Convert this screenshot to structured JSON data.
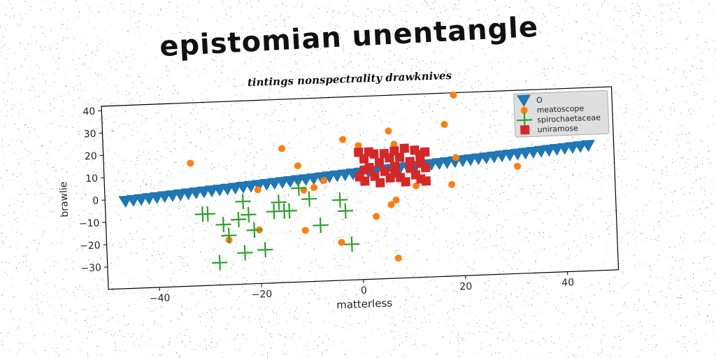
{
  "title": "epistomian unentangle",
  "subtitle": "tintings nonspectrality drawknives",
  "colors": {
    "series_1": "#1f77b4",
    "series_2": "#ff7f0e",
    "series_3": "#2ca02c",
    "series_4": "#d62728",
    "legend_bg": "#dcdcdc",
    "axis": "#000000"
  },
  "chart_data": {
    "type": "scatter",
    "title": "tintings nonspectrality drawknives",
    "xlabel": "matterless",
    "ylabel": "brawlie",
    "xlim": [
      -50,
      50
    ],
    "ylim": [
      -40,
      42
    ],
    "xticks": [
      -40,
      -20,
      0,
      20,
      40
    ],
    "yticks": [
      -30,
      -20,
      -10,
      0,
      10,
      20,
      30,
      40
    ],
    "xtick_labels": [
      "−40",
      "−20",
      "0",
      "20",
      "40"
    ],
    "ytick_labels": [
      "−30",
      "−20",
      "−10",
      "0",
      "10",
      "20",
      "30",
      "40"
    ],
    "grid": false,
    "legend_position": "top-right",
    "series": [
      {
        "name": "O",
        "marker": "triangle-down",
        "color": "#1f77b4",
        "line": {
          "x0": -46,
          "y0": -1,
          "x1": 45,
          "y1": 16
        },
        "count": 60
      },
      {
        "name": "meatoscope",
        "marker": "circle",
        "color": "#ff7f0e",
        "points": [
          [
            -33,
            15
          ],
          [
            -15,
            20
          ],
          [
            -12,
            12
          ],
          [
            -20,
            2
          ],
          [
            -11,
            1
          ],
          [
            -9,
            2
          ],
          [
            -7,
            5
          ],
          [
            -3,
            23
          ],
          [
            0,
            20
          ],
          [
            -26,
            -20
          ],
          [
            -20,
            -16
          ],
          [
            -11,
            -17
          ],
          [
            -4,
            -23
          ],
          [
            2,
            10
          ],
          [
            3,
            -12
          ],
          [
            6,
            -7
          ],
          [
            7,
            -5
          ],
          [
            6,
            26
          ],
          [
            7,
            20
          ],
          [
            11,
            1
          ],
          [
            17,
            28
          ],
          [
            18,
            1
          ],
          [
            19,
            13
          ],
          [
            19,
            41
          ],
          [
            31,
            8
          ],
          [
            7,
            -31
          ]
        ]
      },
      {
        "name": "spirochaetaceae",
        "marker": "plus",
        "color": "#2ca02c",
        "points": [
          [
            -31,
            -8
          ],
          [
            -30,
            -8
          ],
          [
            -27,
            -13
          ],
          [
            -26,
            -18
          ],
          [
            -24,
            -11
          ],
          [
            -23,
            -3
          ],
          [
            -22,
            -9
          ],
          [
            -21,
            -16
          ],
          [
            -19,
            -25
          ],
          [
            -17,
            -8
          ],
          [
            -16,
            -4
          ],
          [
            -14,
            -8
          ],
          [
            -12,
            2
          ],
          [
            -10,
            -3
          ],
          [
            -8,
            -15
          ],
          [
            -4,
            -4
          ],
          [
            -3,
            -9
          ],
          [
            -2,
            -24
          ],
          [
            -28,
            -30
          ],
          [
            -23,
            -26
          ],
          [
            -15,
            -8
          ]
        ]
      },
      {
        "name": "uniramose",
        "marker": "square",
        "color": "#d62728",
        "points": [
          [
            0,
            17
          ],
          [
            1,
            14
          ],
          [
            2,
            10
          ],
          [
            0,
            6
          ],
          [
            1,
            4
          ],
          [
            3,
            16
          ],
          [
            4,
            12
          ],
          [
            5,
            8
          ],
          [
            4,
            3
          ],
          [
            6,
            14
          ],
          [
            7,
            10
          ],
          [
            8,
            5
          ],
          [
            7,
            17
          ],
          [
            9,
            18
          ],
          [
            10,
            12
          ],
          [
            11,
            6
          ],
          [
            12,
            15
          ],
          [
            13,
            9
          ],
          [
            12,
            4
          ],
          [
            11,
            17
          ],
          [
            13,
            16
          ],
          [
            2,
            17
          ],
          [
            5,
            16
          ],
          [
            8,
            14
          ],
          [
            10,
            9
          ],
          [
            3,
            6
          ],
          [
            6,
            5
          ],
          [
            9,
            3
          ],
          [
            13,
            3
          ],
          [
            1,
            9
          ],
          [
            12,
            11
          ],
          [
            7,
            7
          ]
        ]
      }
    ]
  }
}
